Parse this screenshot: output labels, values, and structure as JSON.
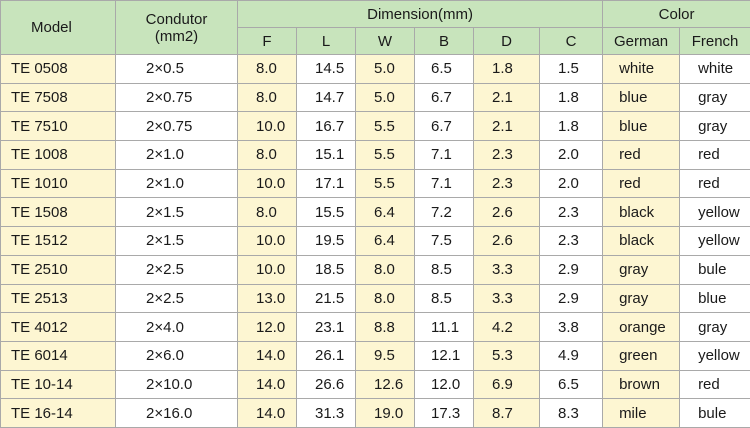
{
  "header": {
    "model": "Model",
    "conductor_line1": "Condutor",
    "conductor_line2": "(mm2)",
    "dimension": "Dimension(mm)",
    "color": "Color",
    "dims": [
      "F",
      "L",
      "W",
      "B",
      "D",
      "C"
    ],
    "colors": [
      "German",
      "French"
    ]
  },
  "rows": [
    {
      "model": "TE 0508",
      "cond": "2×0.5",
      "F": "8.0",
      "L": "14.5",
      "W": "5.0",
      "B": "6.5",
      "D": "1.8",
      "C": "1.5",
      "german": "white",
      "french": "white"
    },
    {
      "model": "TE 7508",
      "cond": "2×0.75",
      "F": "8.0",
      "L": "14.7",
      "W": "5.0",
      "B": "6.7",
      "D": "2.1",
      "C": "1.8",
      "german": "blue",
      "french": "gray"
    },
    {
      "model": "TE 7510",
      "cond": "2×0.75",
      "F": "10.0",
      "L": "16.7",
      "W": "5.5",
      "B": "6.7",
      "D": "2.1",
      "C": "1.8",
      "german": "blue",
      "french": "gray"
    },
    {
      "model": "TE 1008",
      "cond": "2×1.0",
      "F": "8.0",
      "L": "15.1",
      "W": "5.5",
      "B": "7.1",
      "D": "2.3",
      "C": "2.0",
      "german": "red",
      "french": "red"
    },
    {
      "model": "TE 1010",
      "cond": "2×1.0",
      "F": "10.0",
      "L": "17.1",
      "W": "5.5",
      "B": "7.1",
      "D": "2.3",
      "C": "2.0",
      "german": "red",
      "french": "red"
    },
    {
      "model": "TE 1508",
      "cond": "2×1.5",
      "F": "8.0",
      "L": "15.5",
      "W": "6.4",
      "B": "7.2",
      "D": "2.6",
      "C": "2.3",
      "german": "black",
      "french": "yellow"
    },
    {
      "model": "TE 1512",
      "cond": "2×1.5",
      "F": "10.0",
      "L": "19.5",
      "W": "6.4",
      "B": "7.5",
      "D": "2.6",
      "C": "2.3",
      "german": "black",
      "french": "yellow"
    },
    {
      "model": "TE 2510",
      "cond": "2×2.5",
      "F": "10.0",
      "L": "18.5",
      "W": "8.0",
      "B": "8.5",
      "D": "3.3",
      "C": "2.9",
      "german": "gray",
      "french": "bule"
    },
    {
      "model": "TE 2513",
      "cond": "2×2.5",
      "F": "13.0",
      "L": "21.5",
      "W": "8.0",
      "B": "8.5",
      "D": "3.3",
      "C": "2.9",
      "german": "gray",
      "french": "blue"
    },
    {
      "model": "TE 4012",
      "cond": "2×4.0",
      "F": "12.0",
      "L": "23.1",
      "W": "8.8",
      "B": "11.1",
      "D": "4.2",
      "C": "3.8",
      "german": "orange",
      "french": "gray"
    },
    {
      "model": "TE 6014",
      "cond": "2×6.0",
      "F": "14.0",
      "L": "26.1",
      "W": "9.5",
      "B": "12.1",
      "D": "5.3",
      "C": "4.9",
      "german": "green",
      "french": "yellow"
    },
    {
      "model": "TE 10-14",
      "cond": "2×10.0",
      "F": "14.0",
      "L": "26.6",
      "W": "12.6",
      "B": "12.0",
      "D": "6.9",
      "C": "6.5",
      "german": "brown",
      "french": "red"
    },
    {
      "model": "TE 16-14",
      "cond": "2×16.0",
      "F": "14.0",
      "L": "31.3",
      "W": "19.0",
      "B": "17.3",
      "D": "8.7",
      "C": "8.3",
      "german": "mile",
      "french": "bule"
    }
  ],
  "colors_used": {
    "header_bg": "#c8e4bc",
    "highlight_bg": "#fdf6d2",
    "border": "#a9a9a9"
  }
}
